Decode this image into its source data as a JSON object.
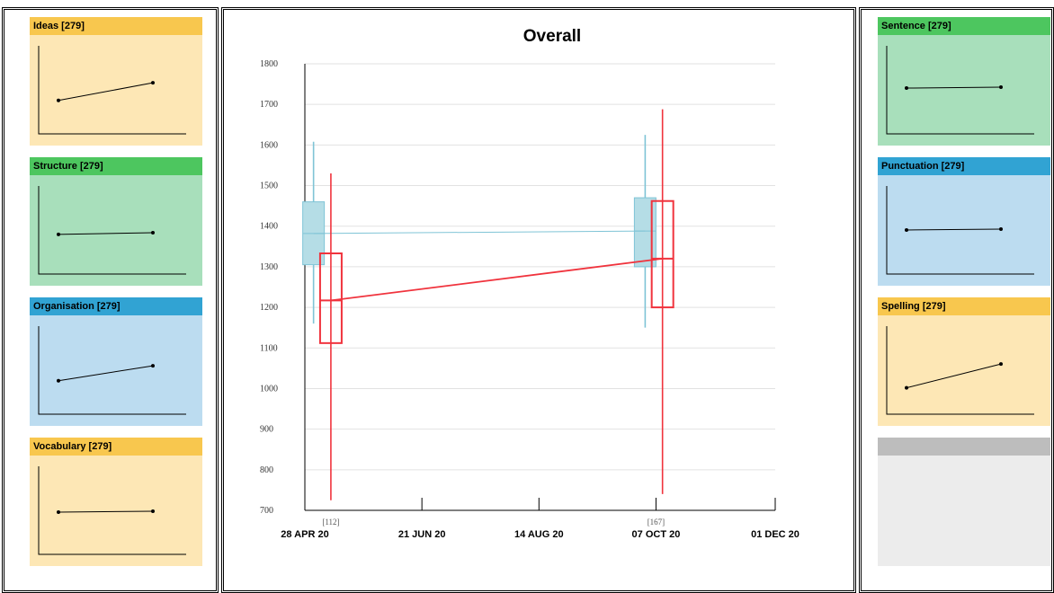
{
  "chart_data": [
    {
      "type": "box-line",
      "title": "Overall",
      "ylim": [
        700,
        1800
      ],
      "yticks": [
        "1800",
        "1700",
        "1600",
        "1500",
        "1400",
        "1300",
        "1200",
        "1100",
        "1000",
        "900",
        "800",
        "700"
      ],
      "x_ticks": [
        "28 APR 20",
        "21 JUN 20",
        "14 AUG 20",
        "07 OCT 20",
        "01 DEC 20"
      ],
      "x_tick_dates": [
        "2020-04-28",
        "2020-06-21",
        "2020-08-14",
        "2020-10-07",
        "2020-12-01"
      ],
      "grid": true,
      "counts": [
        {
          "date": "2020-05-10",
          "label": "[112]"
        },
        {
          "date": "2020-10-07",
          "label": "[167]"
        }
      ],
      "series": [
        {
          "color": "#7fc4d6",
          "fill": "#b5dde6",
          "points": [
            {
              "date": "2020-05-02",
              "min": 1160,
              "q1": 1305,
              "median": 1382,
              "q3": 1460,
              "max": 1608
            },
            {
              "date": "2020-10-02",
              "min": 1150,
              "q1": 1300,
              "median": 1388,
              "q3": 1470,
              "max": 1625
            }
          ]
        },
        {
          "color": "#f0333d",
          "fill": "none",
          "points": [
            {
              "date": "2020-05-10",
              "min": 725,
              "q1": 1112,
              "median": 1217,
              "q3": 1333,
              "max": 1530
            },
            {
              "date": "2020-10-10",
              "min": 740,
              "q1": 1200,
              "median": 1320,
              "q3": 1462,
              "max": 1688
            }
          ]
        }
      ]
    },
    {
      "type": "line",
      "title": "Ideas [279]",
      "values": [
        0.38,
        0.58
      ]
    },
    {
      "type": "line",
      "title": "Structure [279]",
      "values": [
        0.45,
        0.47
      ]
    },
    {
      "type": "line",
      "title": "Organisation [279]",
      "values": [
        0.38,
        0.55
      ]
    },
    {
      "type": "line",
      "title": "Vocabulary [279]",
      "values": [
        0.48,
        0.49
      ]
    },
    {
      "type": "line",
      "title": "Sentence [279]",
      "values": [
        0.52,
        0.53
      ]
    },
    {
      "type": "line",
      "title": "Punctuation [279]",
      "values": [
        0.5,
        0.51
      ]
    },
    {
      "type": "line",
      "title": "Spelling [279]",
      "values": [
        0.3,
        0.57
      ]
    }
  ],
  "colors": {
    "green": "#4dc65f",
    "yellow": "#f8c74e",
    "blue": "#31a3d3",
    "grey": "#bdbdbd"
  }
}
